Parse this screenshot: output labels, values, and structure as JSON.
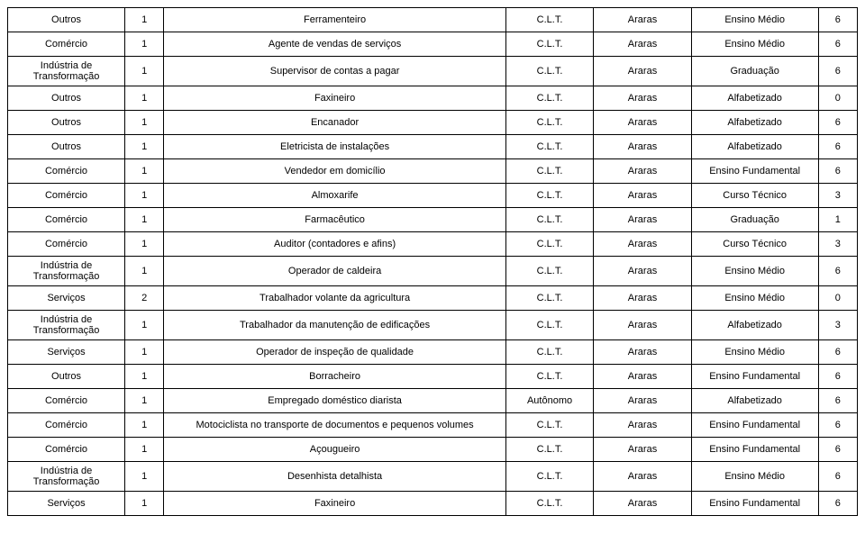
{
  "table": {
    "rows": [
      {
        "sector": "Outros",
        "qty": "1",
        "role": "Ferramenteiro",
        "contract": "C.L.T.",
        "city": "Araras",
        "education": "Ensino Médio",
        "code": "6"
      },
      {
        "sector": "Comércio",
        "qty": "1",
        "role": "Agente de vendas de serviços",
        "contract": "C.L.T.",
        "city": "Araras",
        "education": "Ensino Médio",
        "code": "6"
      },
      {
        "sector": "Indústria de Transformação",
        "qty": "1",
        "role": "Supervisor de contas a pagar",
        "contract": "C.L.T.",
        "city": "Araras",
        "education": "Graduação",
        "code": "6"
      },
      {
        "sector": "Outros",
        "qty": "1",
        "role": "Faxineiro",
        "contract": "C.L.T.",
        "city": "Araras",
        "education": "Alfabetizado",
        "code": "0"
      },
      {
        "sector": "Outros",
        "qty": "1",
        "role": "Encanador",
        "contract": "C.L.T.",
        "city": "Araras",
        "education": "Alfabetizado",
        "code": "6"
      },
      {
        "sector": "Outros",
        "qty": "1",
        "role": "Eletricista de instalações",
        "contract": "C.L.T.",
        "city": "Araras",
        "education": "Alfabetizado",
        "code": "6"
      },
      {
        "sector": "Comércio",
        "qty": "1",
        "role": "Vendedor em domicílio",
        "contract": "C.L.T.",
        "city": "Araras",
        "education": "Ensino Fundamental",
        "code": "6"
      },
      {
        "sector": "Comércio",
        "qty": "1",
        "role": "Almoxarife",
        "contract": "C.L.T.",
        "city": "Araras",
        "education": "Curso Técnico",
        "code": "3"
      },
      {
        "sector": "Comércio",
        "qty": "1",
        "role": "Farmacêutico",
        "contract": "C.L.T.",
        "city": "Araras",
        "education": "Graduação",
        "code": "1"
      },
      {
        "sector": "Comércio",
        "qty": "1",
        "role": "Auditor (contadores e afins)",
        "contract": "C.L.T.",
        "city": "Araras",
        "education": "Curso Técnico",
        "code": "3"
      },
      {
        "sector": "Indústria de Transformação",
        "qty": "1",
        "role": "Operador de caldeira",
        "contract": "C.L.T.",
        "city": "Araras",
        "education": "Ensino Médio",
        "code": "6"
      },
      {
        "sector": "Serviços",
        "qty": "2",
        "role": "Trabalhador volante da agricultura",
        "contract": "C.L.T.",
        "city": "Araras",
        "education": "Ensino Médio",
        "code": "0"
      },
      {
        "sector": "Indústria de Transformação",
        "qty": "1",
        "role": "Trabalhador da manutenção de edificações",
        "contract": "C.L.T.",
        "city": "Araras",
        "education": "Alfabetizado",
        "code": "3"
      },
      {
        "sector": "Serviços",
        "qty": "1",
        "role": "Operador de inspeção de qualidade",
        "contract": "C.L.T.",
        "city": "Araras",
        "education": "Ensino Médio",
        "code": "6"
      },
      {
        "sector": "Outros",
        "qty": "1",
        "role": "Borracheiro",
        "contract": "C.L.T.",
        "city": "Araras",
        "education": "Ensino Fundamental",
        "code": "6"
      },
      {
        "sector": "Comércio",
        "qty": "1",
        "role": "Empregado doméstico diarista",
        "contract": "Autônomo",
        "city": "Araras",
        "education": "Alfabetizado",
        "code": "6"
      },
      {
        "sector": "Comércio",
        "qty": "1",
        "role": "Motociclista no transporte de documentos e pequenos volumes",
        "contract": "C.L.T.",
        "city": "Araras",
        "education": "Ensino Fundamental",
        "code": "6"
      },
      {
        "sector": "Comércio",
        "qty": "1",
        "role": "Açougueiro",
        "contract": "C.L.T.",
        "city": "Araras",
        "education": "Ensino Fundamental",
        "code": "6"
      },
      {
        "sector": "Indústria de Transformação",
        "qty": "1",
        "role": "Desenhista detalhista",
        "contract": "C.L.T.",
        "city": "Araras",
        "education": "Ensino Médio",
        "code": "6"
      },
      {
        "sector": "Serviços",
        "qty": "1",
        "role": "Faxineiro",
        "contract": "C.L.T.",
        "city": "Araras",
        "education": "Ensino Fundamental",
        "code": "6"
      }
    ]
  }
}
